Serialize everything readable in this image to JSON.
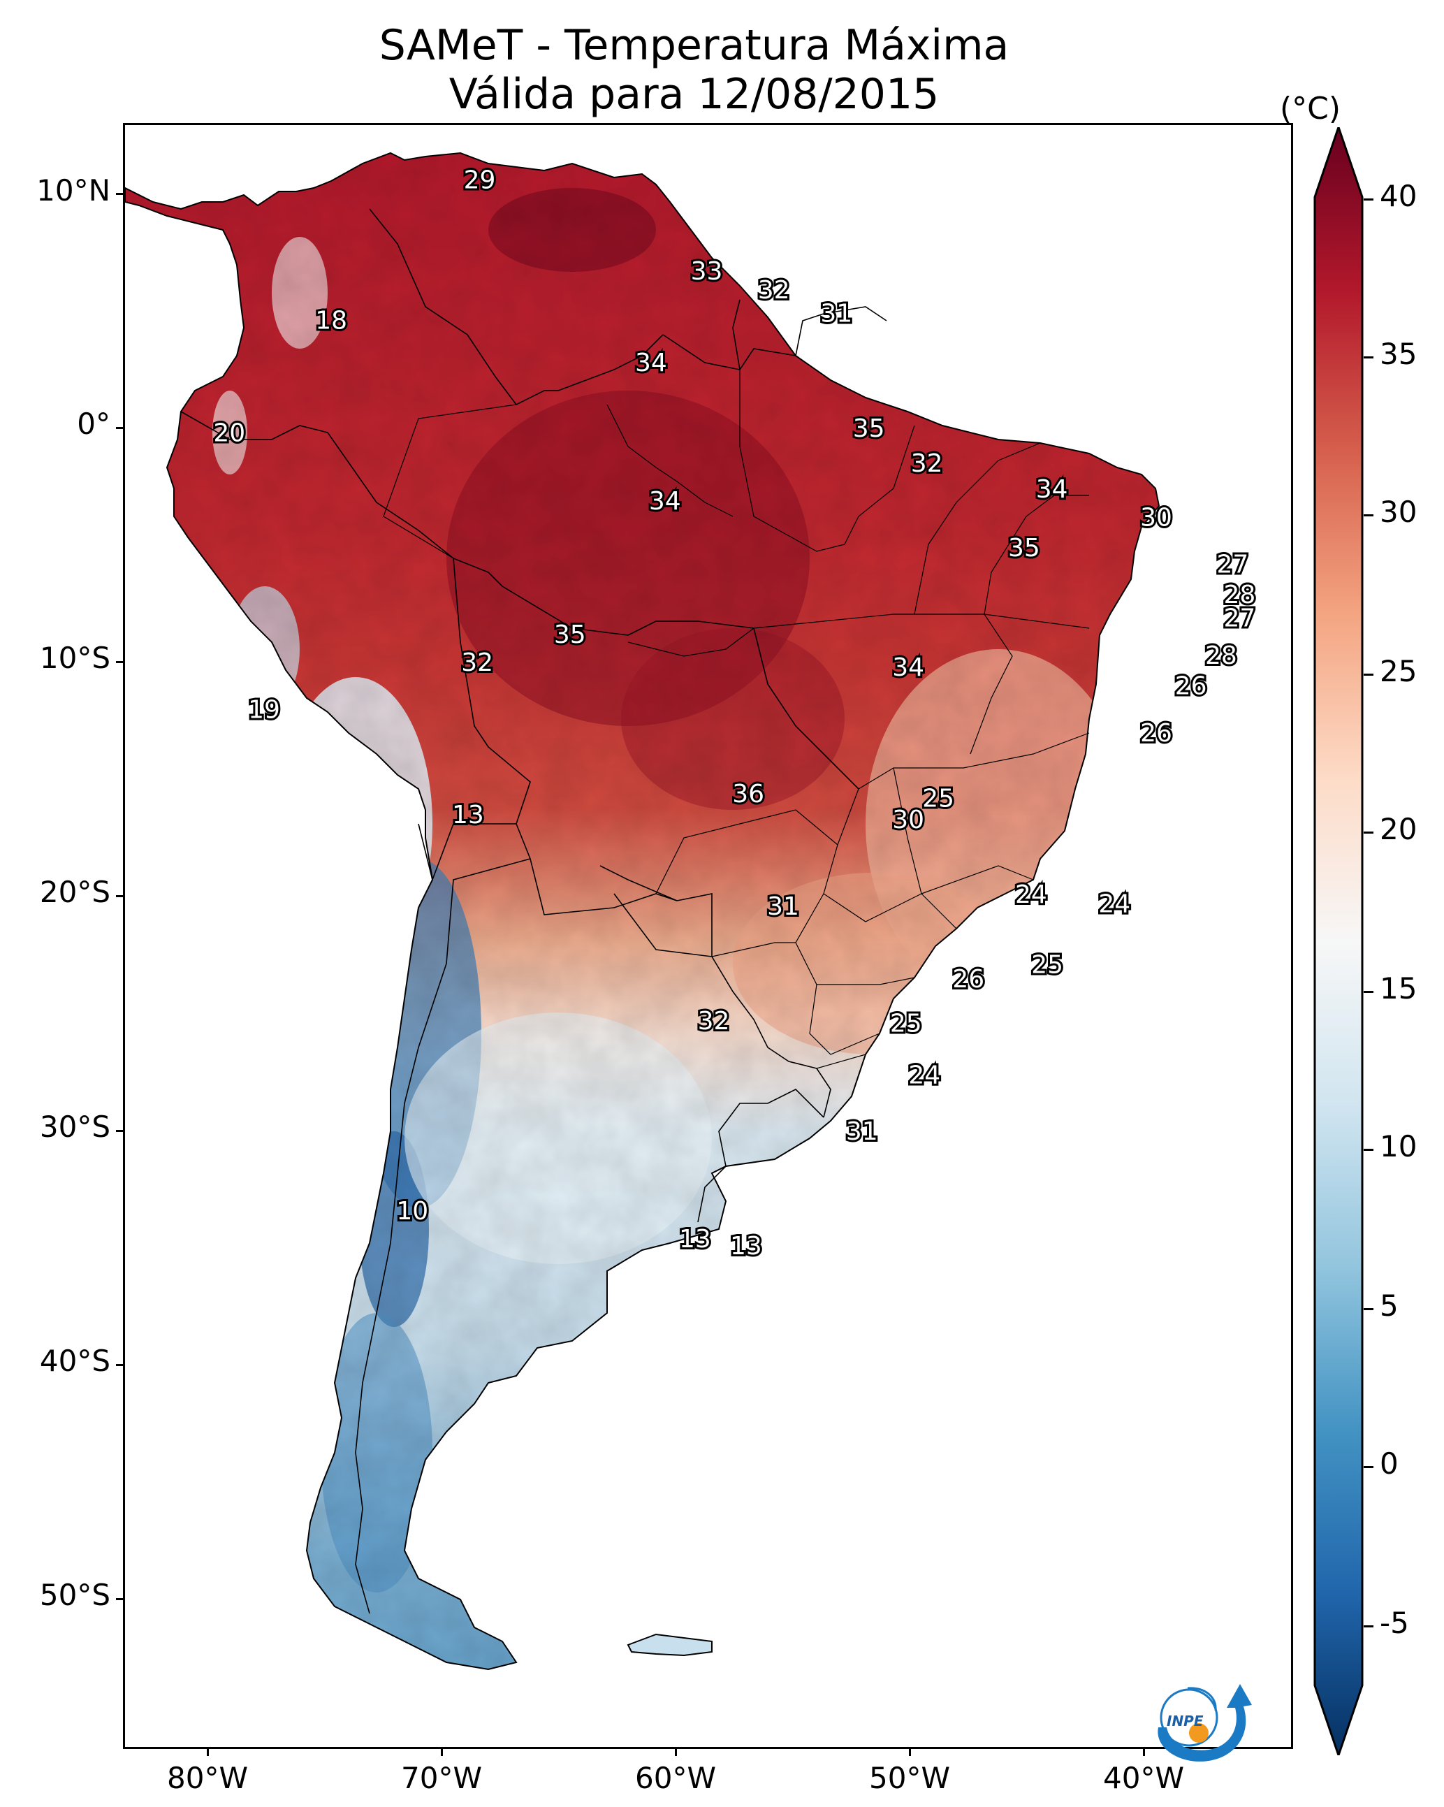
{
  "title_line1": "SAMeT - Temperatura Máxima",
  "title_line2": "Válida para 12/08/2015",
  "lat_ticks": [
    "10°N",
    "0°",
    "10°S",
    "20°S",
    "30°S",
    "40°S",
    "50°S"
  ],
  "lon_ticks": [
    "80°W",
    "70°W",
    "60°W",
    "50°W",
    "40°W"
  ],
  "colorbar": {
    "unit": "(°C)",
    "ticks": [
      "40",
      "35",
      "30",
      "25",
      "20",
      "15",
      "10",
      "5",
      "0",
      "-5"
    ],
    "min": -5,
    "max": 40,
    "colors": [
      "#053061",
      "#2166ac",
      "#4393c3",
      "#92c5de",
      "#d1e5f0",
      "#f7f7f7",
      "#fddbc7",
      "#f4a582",
      "#d6604d",
      "#b2182b",
      "#67001f"
    ]
  },
  "temperature_labels": [
    {
      "value": "29",
      "lon": -67.7,
      "lat": 10.6
    },
    {
      "value": "18",
      "lon": -74.1,
      "lat": 4.6
    },
    {
      "value": "33",
      "lon": -57.9,
      "lat": 6.7
    },
    {
      "value": "32",
      "lon": -55.0,
      "lat": 5.9
    },
    {
      "value": "31",
      "lon": -52.3,
      "lat": 4.9
    },
    {
      "value": "34",
      "lon": -60.3,
      "lat": 2.8
    },
    {
      "value": "20",
      "lon": -78.5,
      "lat": -0.2
    },
    {
      "value": "35",
      "lon": -50.9,
      "lat": 0.0
    },
    {
      "value": "32",
      "lon": -48.4,
      "lat": -1.5
    },
    {
      "value": "34",
      "lon": -59.7,
      "lat": -3.1
    },
    {
      "value": "34",
      "lon": -43.0,
      "lat": -2.6
    },
    {
      "value": "30",
      "lon": -38.5,
      "lat": -3.8
    },
    {
      "value": "35",
      "lon": -44.2,
      "lat": -5.1
    },
    {
      "value": "27",
      "lon": -35.2,
      "lat": -5.8
    },
    {
      "value": "28",
      "lon": -34.9,
      "lat": -7.1
    },
    {
      "value": "27",
      "lon": -34.9,
      "lat": -8.1
    },
    {
      "value": "35",
      "lon": -63.8,
      "lat": -8.8
    },
    {
      "value": "32",
      "lon": -67.8,
      "lat": -10.0
    },
    {
      "value": "34",
      "lon": -49.2,
      "lat": -10.2
    },
    {
      "value": "28",
      "lon": -35.7,
      "lat": -9.7
    },
    {
      "value": "26",
      "lon": -37.0,
      "lat": -11.0
    },
    {
      "value": "19",
      "lon": -77.0,
      "lat": -12.0
    },
    {
      "value": "26",
      "lon": -38.5,
      "lat": -13.0
    },
    {
      "value": "36",
      "lon": -56.1,
      "lat": -15.6
    },
    {
      "value": "25",
      "lon": -47.9,
      "lat": -15.8
    },
    {
      "value": "30",
      "lon": -49.2,
      "lat": -16.7
    },
    {
      "value": "13",
      "lon": -68.2,
      "lat": -16.5
    },
    {
      "value": "24",
      "lon": -43.9,
      "lat": -19.9
    },
    {
      "value": "24",
      "lon": -40.3,
      "lat": -20.3
    },
    {
      "value": "31",
      "lon": -54.6,
      "lat": -20.4
    },
    {
      "value": "25",
      "lon": -43.2,
      "lat": -22.9
    },
    {
      "value": "26",
      "lon": -46.6,
      "lat": -23.5
    },
    {
      "value": "32",
      "lon": -57.6,
      "lat": -25.3
    },
    {
      "value": "25",
      "lon": -49.3,
      "lat": -25.4
    },
    {
      "value": "24",
      "lon": -48.5,
      "lat": -27.6
    },
    {
      "value": "31",
      "lon": -51.2,
      "lat": -30.0
    },
    {
      "value": "10",
      "lon": -70.6,
      "lat": -33.4
    },
    {
      "value": "13",
      "lon": -58.4,
      "lat": -34.6
    },
    {
      "value": "13",
      "lon": -56.2,
      "lat": -34.9
    }
  ],
  "logo_text": "INPE"
}
